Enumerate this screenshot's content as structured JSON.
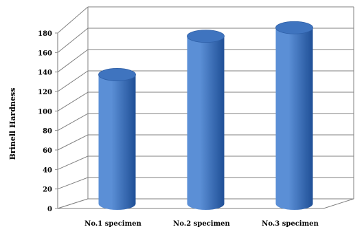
{
  "chart_data": {
    "type": "bar",
    "style": "3d-cylinder",
    "title": "",
    "xlabel": "",
    "ylabel": "Brinell Hardness",
    "categories": [
      "No.1 specimen",
      "No.2 specimen",
      "No.3 specimen"
    ],
    "series": [
      {
        "values": [
          121,
          157,
          165
        ]
      }
    ],
    "ylim": [
      0,
      180
    ],
    "yticks": [
      "0",
      "20",
      "40",
      "60",
      "80",
      "100",
      "120",
      "140",
      "160",
      "180"
    ],
    "grid": true,
    "legend": "none",
    "colors": {
      "bar_light": "#5b8fd6",
      "bar_dark": "#1f4f96",
      "bar_top": "#3f74bf",
      "grid": "#7f7f7f"
    }
  }
}
